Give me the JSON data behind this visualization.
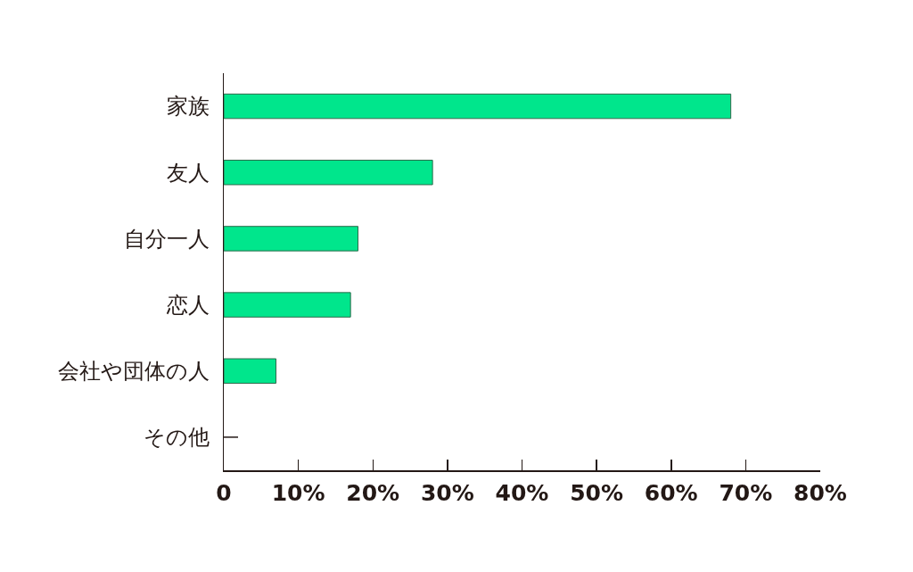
{
  "chart_data": {
    "type": "bar",
    "orientation": "horizontal",
    "categories": [
      "家族",
      "友人",
      "自分一人",
      "恋人",
      "会社や団体の人",
      "その他"
    ],
    "values": [
      68,
      28,
      18,
      17,
      7,
      0
    ],
    "color": "#00e68c",
    "xlim": [
      0,
      80
    ],
    "xticks": [
      0,
      {
        "value": 10,
        "label": "10%"
      },
      {
        "value": 20,
        "label": "20%"
      },
      {
        "value": 30,
        "label": "30%"
      },
      {
        "value": 40,
        "label": "40%"
      },
      {
        "value": 50,
        "label": "50%"
      },
      {
        "value": 60,
        "label": "60%"
      },
      {
        "value": 70,
        "label": "70%"
      },
      {
        "value": 80,
        "label": "80%"
      }
    ]
  }
}
